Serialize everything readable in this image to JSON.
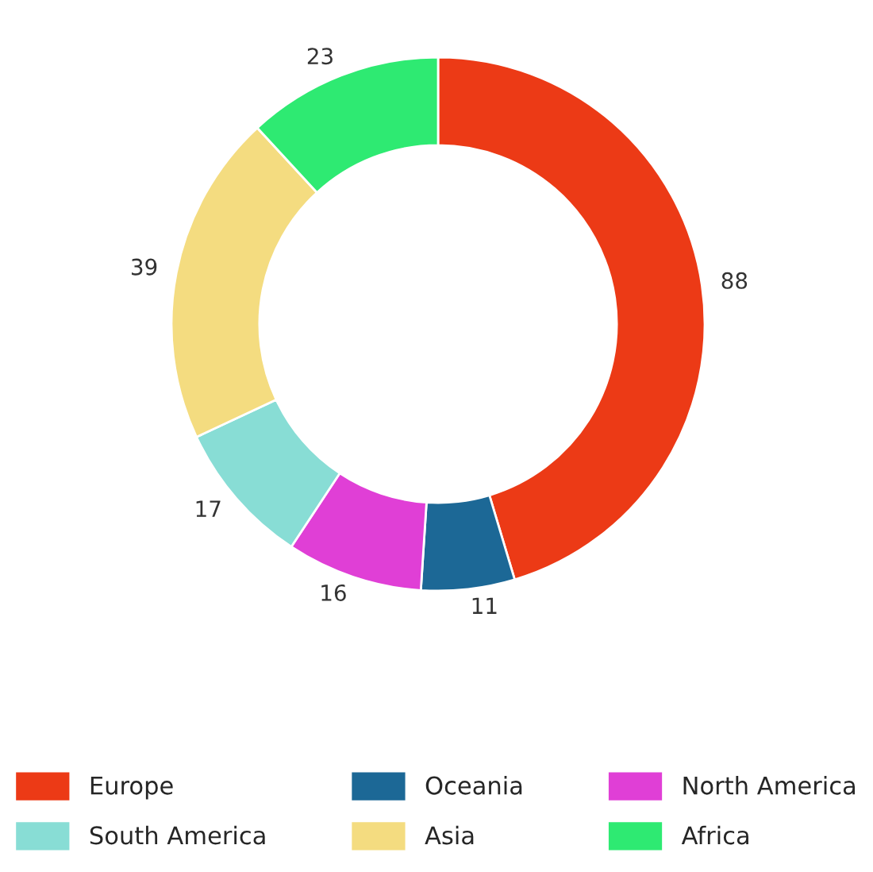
{
  "chart_data": {
    "type": "donut",
    "categories": [
      "Europe",
      "Oceania",
      "North America",
      "South America",
      "Asia",
      "Africa"
    ],
    "values": [
      88,
      11,
      16,
      17,
      39,
      23
    ],
    "colors": [
      "#ec3a16",
      "#1c6896",
      "#e03fd6",
      "#88ddd5",
      "#f4dc80",
      "#2eea72"
    ],
    "data_labels": true,
    "legend": "bottom"
  }
}
